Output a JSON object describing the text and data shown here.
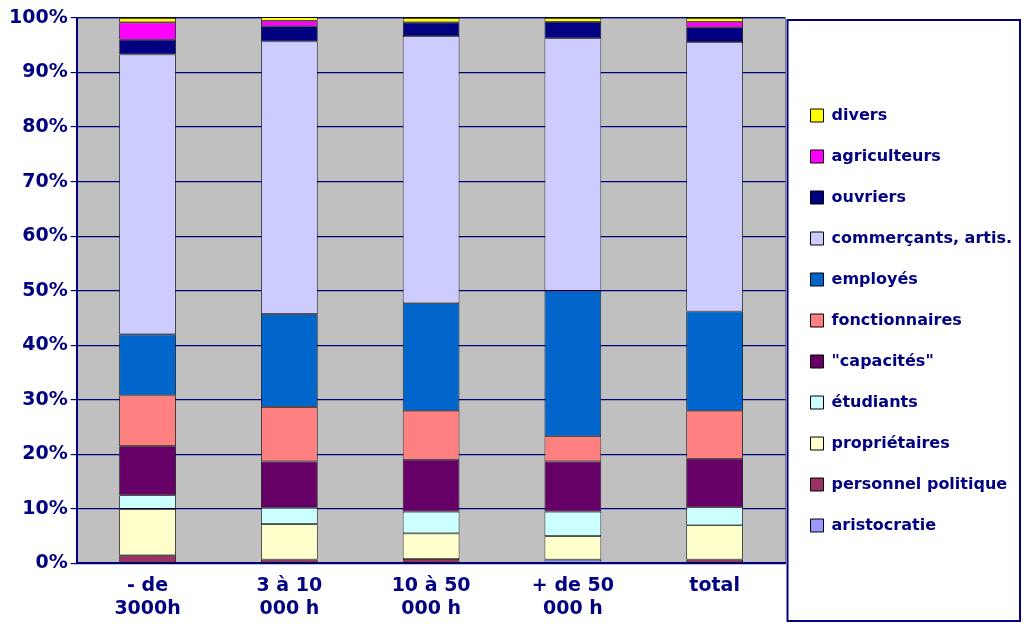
{
  "chart_data": {
    "type": "bar",
    "stacked": true,
    "categories": [
      "- de\n3000h",
      "3 à 10\n000 h",
      "10 à 50\n000 h",
      "+ de 50\n000 h",
      "total"
    ],
    "series": [
      {
        "name": "aristocratie",
        "color": "#9999ff",
        "values": [
          0,
          0,
          0,
          0.7,
          0
        ]
      },
      {
        "name": "personnel politique",
        "color": "#993366",
        "values": [
          1.5,
          0.7,
          0.8,
          0,
          0.7
        ]
      },
      {
        "name": "propriétaires",
        "color": "#ffffcc",
        "values": [
          8.5,
          6.5,
          4.7,
          4.3,
          6.3
        ]
      },
      {
        "name": "étudiants",
        "color": "#ccffff",
        "values": [
          2.5,
          3,
          4,
          4.5,
          3.3
        ]
      },
      {
        "name": "\"capacités\"",
        "color": "#660066",
        "values": [
          9,
          8.5,
          9.5,
          9.2,
          8.9
        ]
      },
      {
        "name": "fonctionnaires",
        "color": "#ff8080",
        "values": [
          9.3,
          10,
          9,
          4.6,
          8.8
        ]
      },
      {
        "name": "employés",
        "color": "#0066cc",
        "values": [
          11.2,
          17,
          19.7,
          26.7,
          18.2
        ]
      },
      {
        "name": "commerçants, artis.",
        "color": "#ccccff",
        "values": [
          51.3,
          50,
          49,
          46.3,
          49.4
        ]
      },
      {
        "name": "ouvriers",
        "color": "#000080",
        "values": [
          2.7,
          2.8,
          2.5,
          3,
          2.7
        ]
      },
      {
        "name": "agriculteurs",
        "color": "#ff00ff",
        "values": [
          3.2,
          1,
          0,
          0,
          1
        ]
      },
      {
        "name": "divers",
        "color": "#ffff00",
        "values": [
          0.8,
          0.7,
          0.8,
          0.7,
          0.7
        ]
      }
    ],
    "ylim": [
      0,
      100
    ],
    "yticks": [
      {
        "value": 0,
        "label": "0%"
      },
      {
        "value": 10,
        "label": "10%"
      },
      {
        "value": 20,
        "label": "20%"
      },
      {
        "value": 30,
        "label": "30%"
      },
      {
        "value": 40,
        "label": "40%"
      },
      {
        "value": 50,
        "label": "50%"
      },
      {
        "value": 60,
        "label": "60%"
      },
      {
        "value": 70,
        "label": "70%"
      },
      {
        "value": 80,
        "label": "80%"
      },
      {
        "value": 90,
        "label": "90%"
      },
      {
        "value": 100,
        "label": "100%"
      }
    ],
    "grid": "y",
    "legend": "right"
  }
}
